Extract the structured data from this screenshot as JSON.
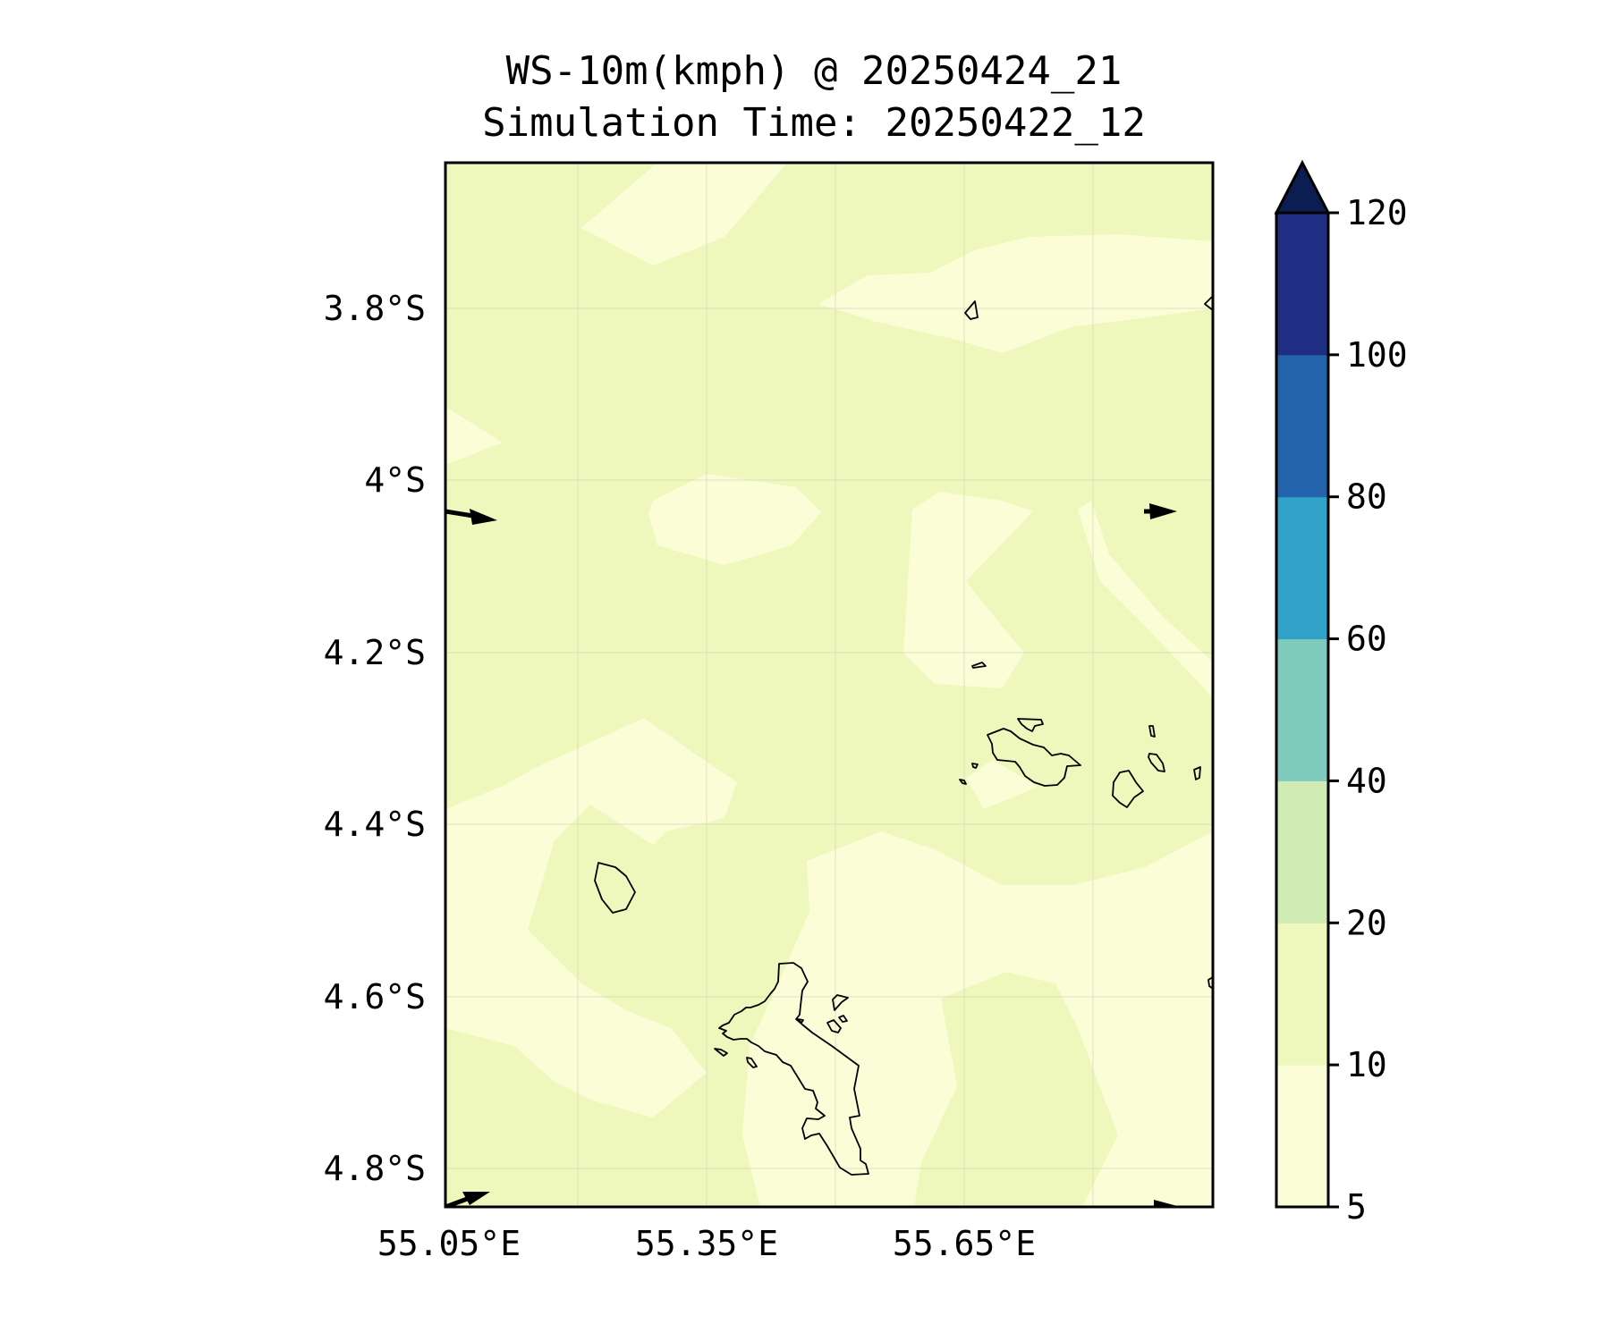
{
  "title": {
    "line1": "WS-10m(kmph) @ 20250424_21",
    "line2": "Simulation Time: 20250422_12"
  },
  "map": {
    "lat_labels": [
      "3.8°S",
      "4°S",
      "4.2°S",
      "4.4°S",
      "4.6°S",
      "4.8°S"
    ],
    "lon_labels": [
      "55.05°E",
      "55.35°E",
      "55.65°E"
    ],
    "land_outline_color": "#000000",
    "field_colors": {
      "light": "#fbfdd7",
      "mid": "#eff8bc"
    },
    "wind_vector_color": "#000000"
  },
  "colorbar": {
    "levels": [
      "5",
      "10",
      "20",
      "40",
      "60",
      "80",
      "100",
      "120"
    ],
    "colors": [
      "#fbfdd7",
      "#eff8bc",
      "#d0ecb4",
      "#7fcbbd",
      "#31a2c8",
      "#2464ad",
      "#1f2e83",
      "#0c1d51"
    ],
    "extend": "max"
  }
}
